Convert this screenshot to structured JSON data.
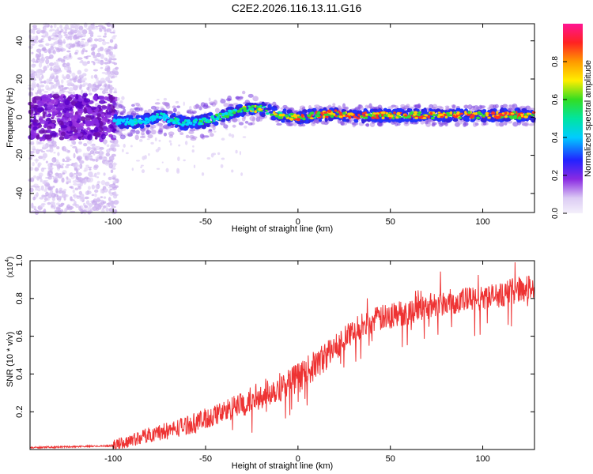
{
  "chart_data": [
    {
      "type": "heatmap",
      "title": "C2E2.2026.116.13.11.G16",
      "xlabel": "Height of straight line (km)",
      "ylabel": "Frequency (Hz)",
      "xlim": [
        -145,
        128
      ],
      "ylim": [
        -50,
        49
      ],
      "xticks": [
        -100,
        -50,
        0,
        50,
        100
      ],
      "yticks": [
        -40,
        -20,
        0,
        20,
        40
      ],
      "colorbar": {
        "label": "Normalized spectral amplitude",
        "range": [
          0.0,
          1.0
        ],
        "ticks": [
          "0.0",
          "0.2",
          "0.4",
          "0.6",
          "0.8"
        ]
      },
      "ridge": [
        {
          "x": -100,
          "y": -2.0
        },
        {
          "x": -90,
          "y": -2.5
        },
        {
          "x": -80,
          "y": -1.5
        },
        {
          "x": -75,
          "y": 1.0
        },
        {
          "x": -70,
          "y": -1.0
        },
        {
          "x": -60,
          "y": -3.5
        },
        {
          "x": -50,
          "y": -2.0
        },
        {
          "x": -40,
          "y": 1.0
        },
        {
          "x": -30,
          "y": 4.0
        },
        {
          "x": -20,
          "y": 4.5
        },
        {
          "x": -10,
          "y": 1.0
        },
        {
          "x": 0,
          "y": 0.0
        },
        {
          "x": 10,
          "y": 1.0
        },
        {
          "x": 20,
          "y": 2.0
        },
        {
          "x": 30,
          "y": 0.5
        },
        {
          "x": 40,
          "y": 1.0
        },
        {
          "x": 60,
          "y": 1.0
        },
        {
          "x": 80,
          "y": 1.0
        },
        {
          "x": 100,
          "y": 1.0
        },
        {
          "x": 128,
          "y": 1.0
        }
      ]
    },
    {
      "type": "line",
      "xlabel": "Height of straight line (km)",
      "ylabel": "SNR (10 * v/v)",
      "yscale_label": "(x10",
      "yscale_exp": "4",
      "xlim": [
        -145,
        128
      ],
      "ylim": [
        0.0,
        1.0
      ],
      "xticks": [
        -100,
        -50,
        0,
        50,
        100
      ],
      "yticks": [
        "0.2",
        "0.4",
        "0.6",
        "0.8",
        "1.0"
      ],
      "series": [
        {
          "name": "SNR",
          "color": "#ee3333",
          "trend": [
            {
              "x": -145,
              "y": 0.01
            },
            {
              "x": -100,
              "y": 0.02
            },
            {
              "x": -90,
              "y": 0.05
            },
            {
              "x": -80,
              "y": 0.08
            },
            {
              "x": -70,
              "y": 0.1
            },
            {
              "x": -60,
              "y": 0.13
            },
            {
              "x": -50,
              "y": 0.16
            },
            {
              "x": -40,
              "y": 0.2
            },
            {
              "x": -30,
              "y": 0.24
            },
            {
              "x": -20,
              "y": 0.29
            },
            {
              "x": -10,
              "y": 0.33
            },
            {
              "x": 0,
              "y": 0.38
            },
            {
              "x": 10,
              "y": 0.45
            },
            {
              "x": 20,
              "y": 0.54
            },
            {
              "x": 30,
              "y": 0.63
            },
            {
              "x": 40,
              "y": 0.68
            },
            {
              "x": 50,
              "y": 0.71
            },
            {
              "x": 60,
              "y": 0.73
            },
            {
              "x": 70,
              "y": 0.76
            },
            {
              "x": 80,
              "y": 0.78
            },
            {
              "x": 90,
              "y": 0.79
            },
            {
              "x": 100,
              "y": 0.8
            },
            {
              "x": 110,
              "y": 0.82
            },
            {
              "x": 120,
              "y": 0.85
            },
            {
              "x": 128,
              "y": 0.86
            }
          ]
        }
      ]
    }
  ]
}
